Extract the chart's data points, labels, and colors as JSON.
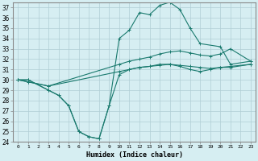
{
  "xlabel": "Humidex (Indice chaleur)",
  "color": "#1a7a6e",
  "bg_color": "#d6eef2",
  "grid_color": "#b0cdd5",
  "xlim": [
    -0.5,
    23.5
  ],
  "ylim": [
    24,
    37.5
  ],
  "yticks": [
    24,
    25,
    26,
    27,
    28,
    29,
    30,
    31,
    32,
    33,
    34,
    35,
    36,
    37
  ],
  "xticks": [
    0,
    1,
    2,
    3,
    4,
    5,
    6,
    7,
    8,
    9,
    10,
    11,
    12,
    13,
    14,
    15,
    16,
    17,
    18,
    19,
    20,
    21,
    22,
    23
  ],
  "x_max": [
    0,
    1,
    3,
    4,
    5,
    6,
    7,
    8,
    9,
    10,
    11,
    12,
    13,
    14,
    15,
    16,
    17,
    18,
    20,
    21,
    23
  ],
  "y_max": [
    30,
    30,
    29,
    28.5,
    27.5,
    25.0,
    24.5,
    24.3,
    27.5,
    34.0,
    34.8,
    36.5,
    36.3,
    37.2,
    37.5,
    36.8,
    35.0,
    33.5,
    33.2,
    31.5,
    31.8
  ],
  "x_min": [
    0,
    1,
    3,
    4,
    5,
    6,
    7,
    8,
    9,
    10,
    11,
    12,
    13,
    14,
    15,
    16,
    17,
    18,
    19,
    20,
    21,
    23
  ],
  "y_min": [
    30,
    30,
    29,
    28.5,
    27.5,
    25.0,
    24.5,
    24.3,
    27.5,
    30.5,
    31.0,
    31.2,
    31.3,
    31.5,
    31.5,
    31.3,
    31.0,
    30.8,
    31.0,
    31.2,
    31.2,
    31.5
  ],
  "x_m1": [
    0,
    1,
    3,
    10,
    11,
    12,
    13,
    14,
    15,
    16,
    17,
    18,
    19,
    20,
    21,
    23
  ],
  "y_m1": [
    30,
    29.8,
    29.4,
    31.5,
    31.8,
    32.0,
    32.2,
    32.5,
    32.7,
    32.8,
    32.6,
    32.4,
    32.3,
    32.5,
    33.0,
    31.8
  ],
  "x_m2": [
    0,
    1,
    3,
    10,
    11,
    12,
    13,
    14,
    15,
    16,
    17,
    18,
    19,
    20,
    21,
    23
  ],
  "y_m2": [
    30,
    29.8,
    29.4,
    30.8,
    31.0,
    31.2,
    31.3,
    31.4,
    31.5,
    31.4,
    31.3,
    31.2,
    31.1,
    31.2,
    31.3,
    31.5
  ]
}
